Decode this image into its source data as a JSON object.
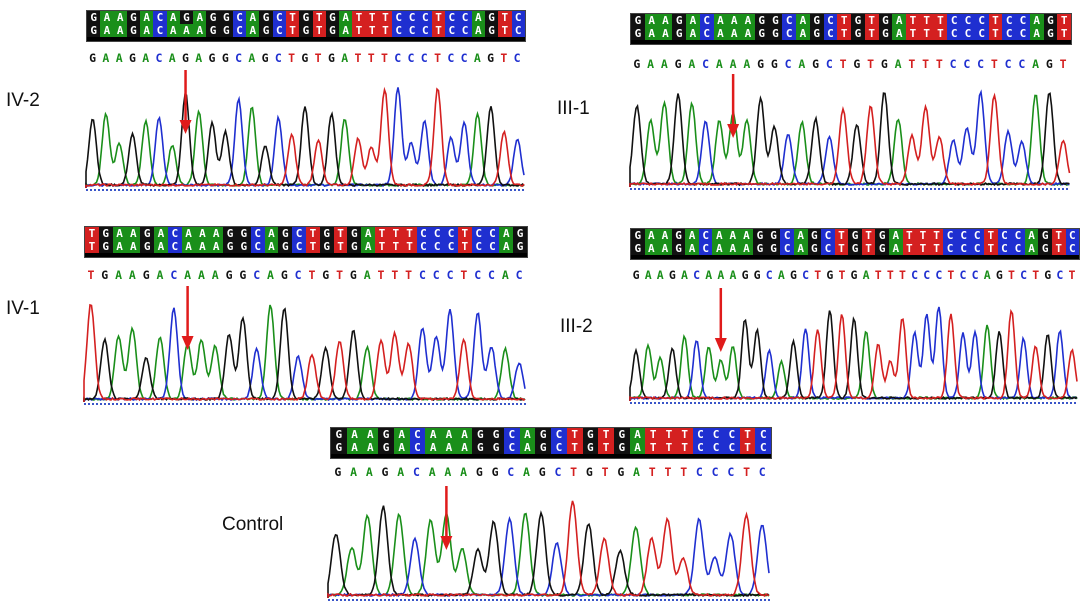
{
  "colors": {
    "A": "#1a8f1a",
    "C": "#1f2fd0",
    "G": "#111111",
    "T": "#d42020",
    "N": "#9a9a9a",
    "arrow": "#e01b1b"
  },
  "panels": [
    {
      "id": "iv2",
      "label": "IV-2",
      "bar_top": "GAAGACAGAGGCAGCTGTGATTTCCCTCCAGTC",
      "bar_bottom": "GAAGACAAAGGCAGCTGTGATTTCCCTCCAGTC",
      "sequence": "GAAGACAGAGGCAGCTGTGATTTCCCTCCAGTC"
    },
    {
      "id": "iii1",
      "label": "III-1",
      "bar_top": "GAAGACAAAGGCAGCTGTGATTTCCCTCCAGT",
      "bar_bottom": "GAAGACAAAGGCAGCTGTGATTTCCCTCCAGT",
      "sequence": "GAAGACAAAGGCAGCTGTGATTTCCCTCCAGT"
    },
    {
      "id": "iv1",
      "label": "IV-1",
      "bar_top": "TGAAGACAAAGGCAGCTGTGATTTCCCTCCAG",
      "bar_bottom": "TGAAGACAAAGGCAGCTGTGATTTCCCTCCAG",
      "sequence": "TGAAGACAAAGGCAGCTGTGATTTCCCTCCAC"
    },
    {
      "id": "iii2",
      "label": "III-2",
      "bar_top": "GAAGACAAAGGCAGCTGTGATTTCCCTCCAGTC",
      "bar_bottom": "GAAGACAAAGGCAGCTGTGATTTCCCTCCAGTC",
      "sequence": "GAAGACAAAGGCAGCTGTGATTTCCCTCCAGTCTGCT"
    },
    {
      "id": "control",
      "label": "Control",
      "bar_top": "GAAGACAAAGGCAGCTGTGATTTCCCTC",
      "bar_bottom": "GAAGACAAAGGCAGCTGTGATTTCCCTC",
      "sequence": "GAAGACAAAGGCAGCTGTGATTTCCCTC"
    }
  ]
}
